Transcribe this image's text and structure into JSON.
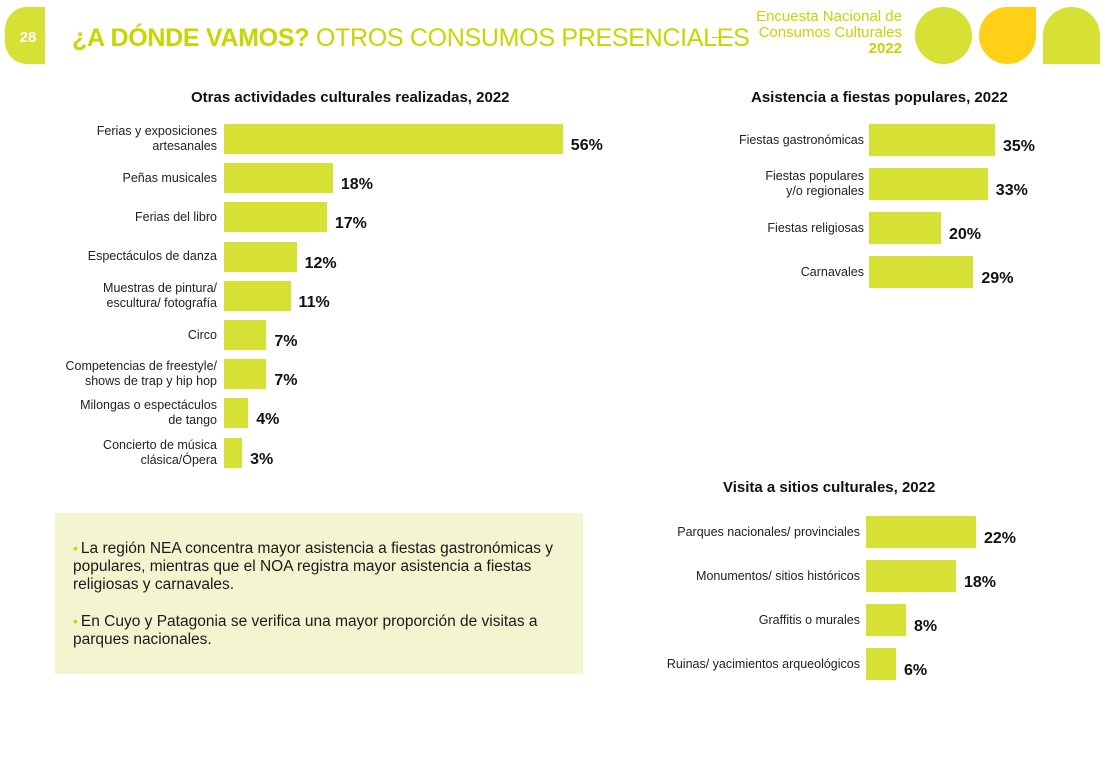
{
  "header": {
    "page_number": "28",
    "title_bold": "¿A DÓNDE VAMOS?",
    "title_regular": "OTROS CONSUMOS PRESENCIALES",
    "survey_line1": "Encuesta Nacional de",
    "survey_line2": "Consumos Culturales",
    "survey_year": "2022",
    "colors": {
      "accent": "#d6e035",
      "accent_text": "#c9d400",
      "yellow": "#ffd016",
      "note_bg": "#f2f5d0"
    }
  },
  "note": {
    "bullets": [
      "La región NEA concentra mayor asistencia a fiestas gastronómicas y populares, mientras que el NOA registra mayor asistencia a fiestas religiosas y carnavales.",
      "En Cuyo y Patagonia se verifica una mayor proporción de visitas a parques nacionales."
    ]
  },
  "chart_data": [
    {
      "type": "bar",
      "orientation": "horizontal",
      "title": "Otras actividades culturales realizadas, 2022",
      "categories": [
        "Ferias y exposiciones artesanales",
        "Peñas musicales",
        "Ferias del libro",
        "Espectáculos de danza",
        "Muestras de pintura/ escultura/ fotografía",
        "Circo",
        "Competencias de freestyle/ shows de trap y hip hop",
        "Milongas o espectáculos de tango",
        "Concierto de música clásica/Ópera"
      ],
      "label_lines": [
        [
          "Ferias y exposiciones",
          "artesanales"
        ],
        [
          "Peñas musicales"
        ],
        [
          "Ferias del libro"
        ],
        [
          "Espectáculos de danza"
        ],
        [
          "Muestras de pintura/",
          "escultura/ fotografía"
        ],
        [
          "Circo"
        ],
        [
          "Competencias de freestyle/",
          "shows de trap y hip hop"
        ],
        [
          "Milongas o espectáculos",
          "de tango"
        ],
        [
          "Concierto de música",
          "clásica/Ópera"
        ]
      ],
      "values": [
        56,
        18,
        17,
        12,
        11,
        7,
        7,
        4,
        3
      ],
      "value_labels": [
        "56%",
        "18%",
        "17%",
        "12%",
        "11%",
        "7%",
        "7%",
        "4%",
        "3%"
      ],
      "unit": "%",
      "xlabel": "",
      "ylabel": "",
      "grid": false
    },
    {
      "type": "bar",
      "orientation": "horizontal",
      "title": "Asistencia a fiestas populares, 2022",
      "categories": [
        "Fiestas gastronómicas",
        "Fiestas populares y/o regionales",
        "Fiestas religiosas",
        "Carnavales"
      ],
      "label_lines": [
        [
          "Fiestas gastronómicas"
        ],
        [
          "Fiestas populares",
          "y/o regionales"
        ],
        [
          "Fiestas religiosas"
        ],
        [
          "Carnavales"
        ]
      ],
      "values": [
        35,
        33,
        20,
        29
      ],
      "value_labels": [
        "35%",
        "33%",
        "20%",
        "29%"
      ],
      "unit": "%",
      "xlabel": "",
      "ylabel": "",
      "grid": false
    },
    {
      "type": "bar",
      "orientation": "horizontal",
      "title": "Visita a sitios culturales, 2022",
      "categories": [
        "Parques nacionales/ provinciales",
        "Monumentos/ sitios históricos",
        "Graffitis o murales",
        "Ruinas/ yacimientos arqueológicos"
      ],
      "label_lines": [
        [
          "Parques nacionales/ provinciales"
        ],
        [
          "Monumentos/ sitios históricos"
        ],
        [
          "Graffitis o murales"
        ],
        [
          "Ruinas/ yacimientos arqueológicos"
        ]
      ],
      "values": [
        22,
        18,
        8,
        6
      ],
      "value_labels": [
        "22%",
        "18%",
        "8%",
        "6%"
      ],
      "unit": "%",
      "xlabel": "",
      "ylabel": "",
      "grid": false
    }
  ]
}
